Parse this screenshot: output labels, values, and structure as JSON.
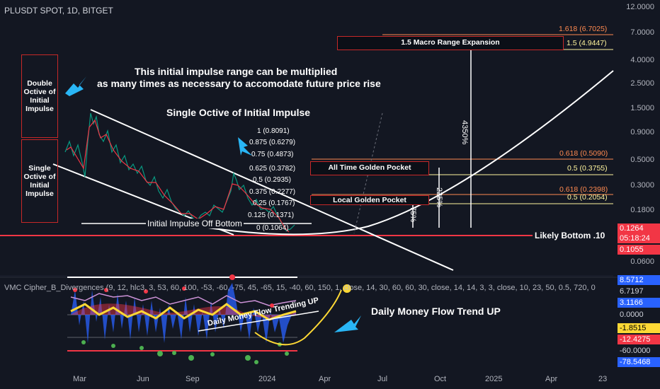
{
  "header": {
    "ticker": "PLUSDT SPOT, 1D, BITGET"
  },
  "price_axis": {
    "labels": [
      "12.0000",
      "7.0000",
      "4.0000",
      "2.5000",
      "1.5000",
      "0.9000",
      "0.5000",
      "0.3000",
      "0.1800",
      "0.0600"
    ],
    "badges": [
      {
        "text": "1.618 (6.7025)",
        "bg": "#131722",
        "fg": "#ff8a50"
      },
      {
        "text": "1.5 (4.9447)",
        "bg": "#fff59d",
        "fg": "#000"
      },
      {
        "text": "0.618 (0.5090)",
        "bg": "#131722",
        "fg": "#ff8a50"
      },
      {
        "text": "0.5 (0.3755)",
        "bg": "#fff59d",
        "fg": "#000"
      },
      {
        "text": "0.618 (0.2398)",
        "bg": "#131722",
        "fg": "#ff8a50"
      },
      {
        "text": "0.5 (0.2054)",
        "bg": "#fff59d",
        "fg": "#000"
      },
      {
        "text": "0.1264",
        "bg": "#f23645",
        "fg": "#fff"
      },
      {
        "text": "05:18:24",
        "bg": "#f23645",
        "fg": "#fff"
      },
      {
        "text": "0.1055",
        "bg": "#f23645",
        "fg": "#fff"
      }
    ]
  },
  "time_axis": [
    "Mar",
    "Jun",
    "Sep",
    "2024",
    "Apr",
    "Jul",
    "Oct",
    "2025",
    "Apr",
    "23"
  ],
  "boxes": {
    "double_octive": "Double Octive of Initial Impulse",
    "single_octive": "Single Octive of Initial Impulse"
  },
  "annotations": {
    "impulse_range_1": "This initial impulse range can be multiplied",
    "impulse_range_2": "as many times as necessary to accomodate future price rise",
    "single_octive_title": "Single Octive of Initial Impulse",
    "initial_impulse": "Initial Impulse Off Bottom",
    "likely_bottom": "Likely Bottom .10",
    "macro_range": "1.5 Macro Range Expansion",
    "all_time_gp": "All Time Golden Pocket",
    "local_gp": "Local Golden Pocket",
    "pct_4350": "4350%",
    "pct_225": "225%",
    "pct_75": "75%",
    "daily_mf": "Daily Money Flow Trend UP",
    "daily_mf_trending": "Daily Money Flow Trending UP"
  },
  "fib_levels": [
    "1 (0.8091)",
    "0.875 (0.6279)",
    "0.75 (0.4873)",
    "0.625 (0.3782)",
    "0.5 (0.2935)",
    "0.375 (0.2277)",
    "0.25 (0.1767)",
    "0.125 (0.1371)",
    "0 (0.1064)"
  ],
  "indicator": {
    "title": "VMC Cipher_B_Divergences (9, 12, hlc3, 3, 53, 60, 100, -53, -60, -75, 45, -65, 15, -40, 60, 150, 1, close, 14, 30, 60, 60, 30, close, 14, 14, 3, 3, close, 10, 23, 50, 0.5, 720, 0",
    "labels": [
      {
        "text": "8.5712",
        "bg": "#2962ff",
        "fg": "#fff"
      },
      {
        "text": "6.7197",
        "bg": "#131722",
        "fg": "#d1d4dc"
      },
      {
        "text": "3.1166",
        "bg": "#2962ff",
        "fg": "#fff"
      },
      {
        "text": "0.0000",
        "bg": "#131722",
        "fg": "#d1d4dc"
      },
      {
        "text": "-1.8515",
        "bg": "#fdd835",
        "fg": "#000"
      },
      {
        "text": "-12.4275",
        "bg": "#f23645",
        "fg": "#fff"
      },
      {
        "text": "-60.0000",
        "bg": "#131722",
        "fg": "#d1d4dc"
      },
      {
        "text": "-78.5468",
        "bg": "#2962ff",
        "fg": "#fff"
      }
    ]
  },
  "colors": {
    "background": "#131722",
    "fib_orange": "#ff8a50",
    "fib_yellow": "#fff59d",
    "bottom_red": "#f23645"
  }
}
